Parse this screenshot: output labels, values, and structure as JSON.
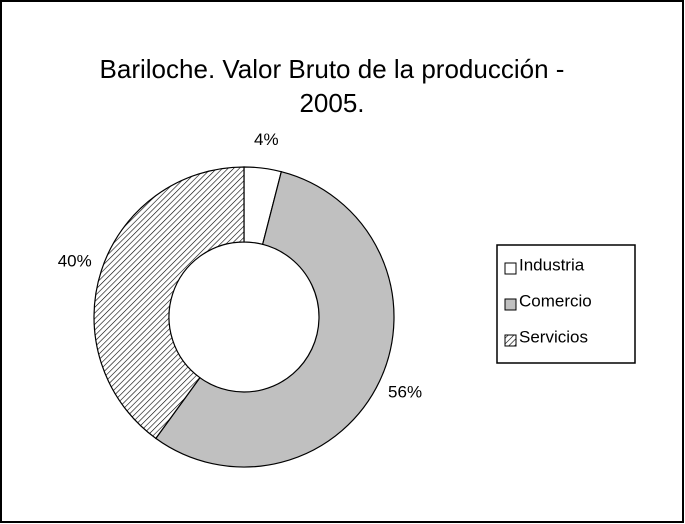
{
  "chart_data": {
    "type": "donut",
    "title": "Bariloche. Valor Bruto de la producción - 2005.",
    "categories": [
      "Industria",
      "Comercio",
      "Servicios"
    ],
    "values": [
      4,
      56,
      40
    ],
    "value_labels": [
      "4%",
      "56%",
      "40%"
    ],
    "colors": [
      "#ffffff",
      "#c0c0c0",
      "#ffffff"
    ],
    "hatch": [
      false,
      false,
      true
    ],
    "legend": "right"
  }
}
